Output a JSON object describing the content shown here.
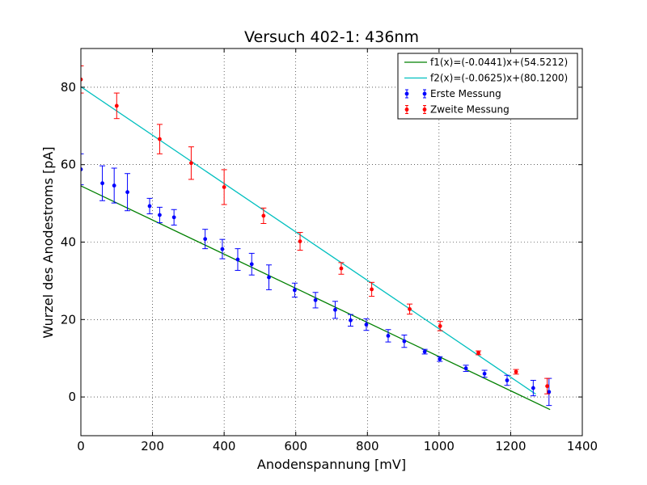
{
  "chart_data": {
    "type": "scatter",
    "title": "Versuch 402-1: 436nm",
    "xlabel": "Anodenspannung [mV]",
    "ylabel": "Wurzel des Anodestroms [pA]",
    "xlim": [
      0,
      1400
    ],
    "ylim": [
      -10,
      90
    ],
    "xticks": [
      0,
      200,
      400,
      600,
      800,
      1000,
      1200,
      1400
    ],
    "yticks": [
      0,
      20,
      40,
      60,
      80
    ],
    "grid": true,
    "legend_position": "top-right",
    "series": [
      {
        "name": "Erste Messung",
        "kind": "errorbar",
        "color": "#0000ff",
        "points": [
          {
            "x": 0,
            "y": 58.8,
            "err": 4.0
          },
          {
            "x": 60,
            "y": 55.2,
            "err": 4.5
          },
          {
            "x": 93,
            "y": 54.6,
            "err": 4.5
          },
          {
            "x": 130,
            "y": 52.9,
            "err": 4.8
          },
          {
            "x": 192,
            "y": 49.3,
            "err": 2.0
          },
          {
            "x": 220,
            "y": 47.0,
            "err": 2.0
          },
          {
            "x": 260,
            "y": 46.4,
            "err": 2.0
          },
          {
            "x": 347,
            "y": 40.8,
            "err": 2.5
          },
          {
            "x": 395,
            "y": 38.2,
            "err": 2.5
          },
          {
            "x": 438,
            "y": 35.5,
            "err": 2.8
          },
          {
            "x": 477,
            "y": 34.3,
            "err": 2.8
          },
          {
            "x": 525,
            "y": 30.9,
            "err": 3.2
          },
          {
            "x": 597,
            "y": 27.6,
            "err": 1.8
          },
          {
            "x": 655,
            "y": 25.0,
            "err": 2.0
          },
          {
            "x": 710,
            "y": 22.5,
            "err": 2.2
          },
          {
            "x": 753,
            "y": 19.8,
            "err": 1.5
          },
          {
            "x": 797,
            "y": 18.7,
            "err": 1.5
          },
          {
            "x": 858,
            "y": 15.8,
            "err": 1.6
          },
          {
            "x": 903,
            "y": 14.4,
            "err": 1.6
          },
          {
            "x": 960,
            "y": 11.7,
            "err": 0.6
          },
          {
            "x": 1002,
            "y": 9.8,
            "err": 0.6
          },
          {
            "x": 1075,
            "y": 7.4,
            "err": 0.8
          },
          {
            "x": 1127,
            "y": 6.0,
            "err": 0.9
          },
          {
            "x": 1190,
            "y": 4.3,
            "err": 1.3
          },
          {
            "x": 1263,
            "y": 2.3,
            "err": 2.0
          },
          {
            "x": 1307,
            "y": 1.3,
            "err": 3.5
          }
        ]
      },
      {
        "name": "Zweite Messung",
        "kind": "errorbar",
        "color": "#ff0000",
        "points": [
          {
            "x": 0,
            "y": 82.0,
            "err": 3.5
          },
          {
            "x": 100,
            "y": 75.2,
            "err": 3.3
          },
          {
            "x": 220,
            "y": 66.6,
            "err": 3.8
          },
          {
            "x": 308,
            "y": 60.4,
            "err": 4.2
          },
          {
            "x": 400,
            "y": 54.2,
            "err": 4.5
          },
          {
            "x": 510,
            "y": 46.8,
            "err": 2.0
          },
          {
            "x": 612,
            "y": 40.2,
            "err": 2.3
          },
          {
            "x": 727,
            "y": 33.2,
            "err": 1.5
          },
          {
            "x": 812,
            "y": 27.8,
            "err": 1.8
          },
          {
            "x": 918,
            "y": 22.7,
            "err": 1.3
          },
          {
            "x": 1003,
            "y": 18.3,
            "err": 1.2
          },
          {
            "x": 1110,
            "y": 11.4,
            "err": 0.5
          },
          {
            "x": 1215,
            "y": 6.5,
            "err": 0.6
          },
          {
            "x": 1302,
            "y": 2.8,
            "err": 2.0
          }
        ]
      },
      {
        "name": "f1(x)=(-0.0441)x+(54.5212)",
        "kind": "line",
        "color": "#008000",
        "slope": -0.0441,
        "intercept": 54.5212,
        "x_range": [
          0,
          1310
        ]
      },
      {
        "name": "f2(x)=(-0.0625)x+(80.1200)",
        "kind": "line",
        "color": "#00bfbf",
        "slope": -0.0625,
        "intercept": 80.12,
        "x_range": [
          0,
          1270
        ]
      }
    ]
  }
}
